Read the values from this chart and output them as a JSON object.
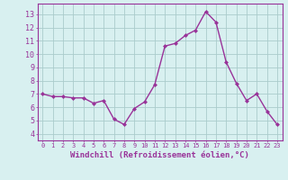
{
  "x": [
    0,
    1,
    2,
    3,
    4,
    5,
    6,
    7,
    8,
    9,
    10,
    11,
    12,
    13,
    14,
    15,
    16,
    17,
    18,
    19,
    20,
    21,
    22,
    23
  ],
  "y": [
    7.0,
    6.8,
    6.8,
    6.7,
    6.7,
    6.3,
    6.5,
    5.1,
    4.7,
    5.9,
    6.4,
    7.7,
    10.6,
    10.8,
    11.4,
    11.8,
    13.2,
    12.4,
    9.4,
    7.8,
    6.5,
    7.0,
    5.7,
    4.7
  ],
  "line_color": "#993399",
  "marker": "D",
  "marker_size": 2.0,
  "line_width": 1.0,
  "xlabel": "Windchill (Refroidissement éolien,°C)",
  "xlabel_fontsize": 6.5,
  "ylabel_ticks": [
    4,
    5,
    6,
    7,
    8,
    9,
    10,
    11,
    12,
    13
  ],
  "xtick_labels": [
    "0",
    "1",
    "2",
    "3",
    "4",
    "5",
    "6",
    "7",
    "8",
    "9",
    "10",
    "11",
    "12",
    "13",
    "14",
    "15",
    "16",
    "17",
    "18",
    "19",
    "20",
    "21",
    "22",
    "23"
  ],
  "ylim": [
    3.5,
    13.8
  ],
  "xlim": [
    -0.5,
    23.5
  ],
  "bg_color": "#d8f0f0",
  "grid_color": "#aacccc",
  "tick_color": "#993399",
  "spine_color": "#993399",
  "xlabel_color": "#993399"
}
